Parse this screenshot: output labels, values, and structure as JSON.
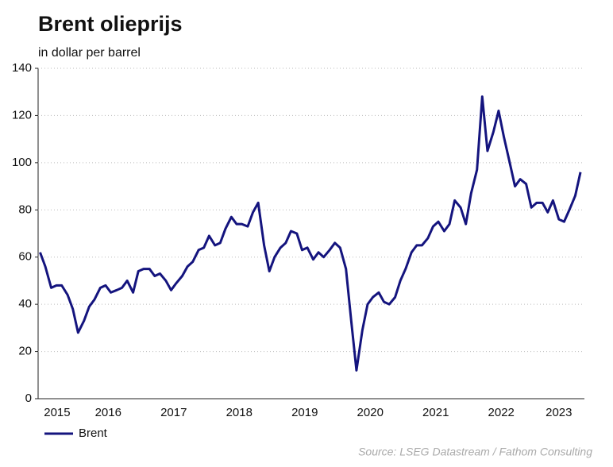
{
  "chart_data": {
    "type": "line",
    "title": "Brent olieprijs",
    "subtitle": "in dollar per barrel",
    "source": "Source: LSEG Datastream / Fathom Consulting",
    "x": [
      2015.46,
      2015.54,
      2015.63,
      2015.71,
      2015.79,
      2015.88,
      2015.96,
      2016.04,
      2016.13,
      2016.21,
      2016.29,
      2016.38,
      2016.46,
      2016.54,
      2016.63,
      2016.71,
      2016.79,
      2016.88,
      2016.96,
      2017.04,
      2017.13,
      2017.21,
      2017.29,
      2017.38,
      2017.46,
      2017.54,
      2017.63,
      2017.71,
      2017.79,
      2017.88,
      2017.96,
      2018.04,
      2018.13,
      2018.21,
      2018.29,
      2018.38,
      2018.46,
      2018.54,
      2018.63,
      2018.71,
      2018.79,
      2018.88,
      2018.96,
      2019.04,
      2019.13,
      2019.21,
      2019.29,
      2019.38,
      2019.46,
      2019.54,
      2019.63,
      2019.71,
      2019.79,
      2019.88,
      2019.96,
      2020.04,
      2020.13,
      2020.21,
      2020.29,
      2020.38,
      2020.46,
      2020.54,
      2020.63,
      2020.71,
      2020.79,
      2020.88,
      2020.96,
      2021.04,
      2021.13,
      2021.21,
      2021.29,
      2021.38,
      2021.46,
      2021.54,
      2021.63,
      2021.71,
      2021.79,
      2021.88,
      2021.96,
      2022.04,
      2022.13,
      2022.21,
      2022.29,
      2022.38,
      2022.46,
      2022.54,
      2022.63,
      2022.71,
      2022.79,
      2022.88,
      2022.96,
      2023.04,
      2023.13,
      2023.21,
      2023.29,
      2023.38,
      2023.46,
      2023.54,
      2023.63,
      2023.71
    ],
    "series": [
      {
        "name": "Brent",
        "color": "#14147e",
        "values": [
          62,
          56,
          47,
          48,
          48,
          44,
          38,
          28,
          33,
          39,
          42,
          47,
          48,
          45,
          46,
          47,
          50,
          45,
          54,
          55,
          55,
          52,
          53,
          50,
          46,
          49,
          52,
          56,
          58,
          63,
          64,
          69,
          65,
          66,
          72,
          77,
          74,
          74,
          73,
          79,
          83,
          65,
          54,
          60,
          64,
          66,
          71,
          70,
          63,
          64,
          59,
          62,
          60,
          63,
          66,
          64,
          55,
          33,
          12,
          29,
          40,
          43,
          45,
          41,
          40,
          43,
          50,
          55,
          62,
          65,
          65,
          68,
          73,
          75,
          71,
          74,
          84,
          81,
          74,
          87,
          97,
          128,
          105,
          113,
          122,
          111,
          100,
          90,
          93,
          91,
          81,
          83,
          83,
          79,
          84,
          76,
          75,
          80,
          86,
          96
        ]
      }
    ],
    "xlim": [
      2015.43,
      2023.77
    ],
    "xticks": [
      {
        "value": 2015.72,
        "label": "2015"
      },
      {
        "value": 2016.5,
        "label": "2016"
      },
      {
        "value": 2017.5,
        "label": "2017"
      },
      {
        "value": 2018.5,
        "label": "2018"
      },
      {
        "value": 2019.5,
        "label": "2019"
      },
      {
        "value": 2020.5,
        "label": "2020"
      },
      {
        "value": 2021.5,
        "label": "2021"
      },
      {
        "value": 2022.5,
        "label": "2022"
      },
      {
        "value": 2023.38,
        "label": "2023"
      }
    ],
    "ylim": [
      0,
      140
    ],
    "yticks": [
      0,
      20,
      40,
      60,
      80,
      100,
      120,
      140
    ],
    "grid": true,
    "legend": "bottom-left"
  }
}
